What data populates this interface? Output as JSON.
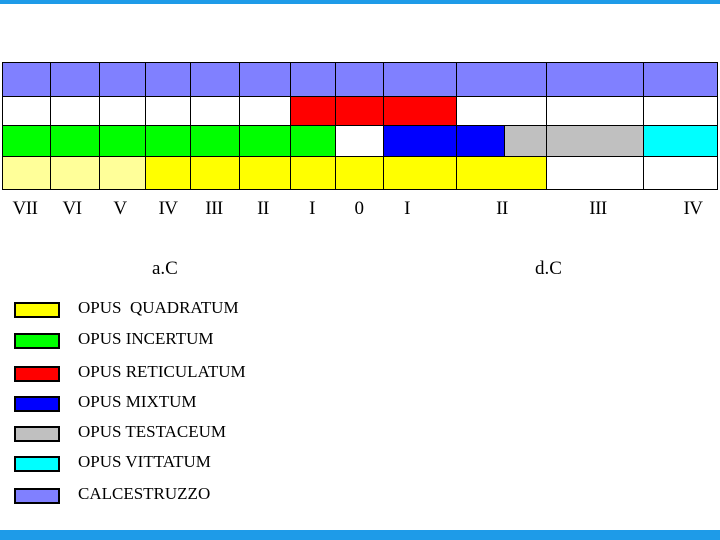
{
  "colors": {
    "quadratum": "#ffff00",
    "quadratum_pale": "#ffff99",
    "incertum": "#00ff00",
    "reticulatum": "#ff0000",
    "mixtum": "#0000ff",
    "testaceum": "#c0c0c0",
    "vittatum": "#00ffff",
    "calcestruzzo": "#8080ff",
    "empty": "#ffffff",
    "frame": "#1e9be8"
  },
  "centuries": [
    {
      "id": "vii-bc",
      "label": "VII"
    },
    {
      "id": "vi-bc",
      "label": "VI"
    },
    {
      "id": "v-bc",
      "label": "V"
    },
    {
      "id": "iv-bc",
      "label": "IV"
    },
    {
      "id": "iii-bc",
      "label": "III"
    },
    {
      "id": "ii-bc",
      "label": "II"
    },
    {
      "id": "i-bc",
      "label": "I"
    },
    {
      "id": "zero",
      "label": "0"
    },
    {
      "id": "i-ad",
      "label": "I"
    },
    {
      "id": "ii-ad",
      "label": "II"
    },
    {
      "id": "iii-ad",
      "label": "III"
    },
    {
      "id": "iv-ad",
      "label": "IV"
    }
  ],
  "eras": {
    "bc": "a.C",
    "ad": "d.C"
  },
  "rows": [
    {
      "id": "calcestruzzo",
      "cells": [
        "calcestruzzo",
        "calcestruzzo",
        "calcestruzzo",
        "calcestruzzo",
        "calcestruzzo",
        "calcestruzzo",
        "calcestruzzo",
        "calcestruzzo",
        "calcestruzzo",
        "calcestruzzo",
        "calcestruzzo",
        "calcestruzzo"
      ]
    },
    {
      "id": "reticulatum",
      "cells": [
        "empty",
        "empty",
        "empty",
        "empty",
        "empty",
        "empty",
        "reticulatum",
        "reticulatum",
        "reticulatum",
        "empty",
        "empty",
        "empty"
      ]
    },
    {
      "id": "incertum",
      "cells": [
        "incertum",
        "incertum",
        "incertum",
        "incertum",
        "incertum",
        "incertum",
        "incertum",
        "empty",
        "mixtum",
        [
          "mixtum",
          "testaceum"
        ],
        "testaceum",
        "vittatum"
      ]
    },
    {
      "id": "quadratum",
      "cells": [
        "quadratum_pale",
        "quadratum_pale",
        "quadratum_pale",
        "quadratum",
        "quadratum",
        "quadratum",
        "quadratum",
        "quadratum",
        "quadratum",
        "quadratum",
        "empty",
        "empty"
      ]
    }
  ],
  "legend": [
    {
      "id": "quadratum",
      "label": "OPUS  QUADRATUM",
      "color": "quadratum"
    },
    {
      "id": "incertum",
      "label": "OPUS INCERTUM",
      "color": "incertum"
    },
    {
      "id": "reticulatum",
      "label": "OPUS RETICULATUM",
      "color": "reticulatum"
    },
    {
      "id": "mixtum",
      "label": "OPUS MIXTUM",
      "color": "mixtum"
    },
    {
      "id": "testaceum",
      "label": "OPUS TESTACEUM",
      "color": "testaceum"
    },
    {
      "id": "vittatum",
      "label": "OPUS VITTATUM",
      "color": "vittatum"
    },
    {
      "id": "calcestruzzo",
      "label": "CALCESTRUZZO",
      "color": "calcestruzzo"
    }
  ]
}
